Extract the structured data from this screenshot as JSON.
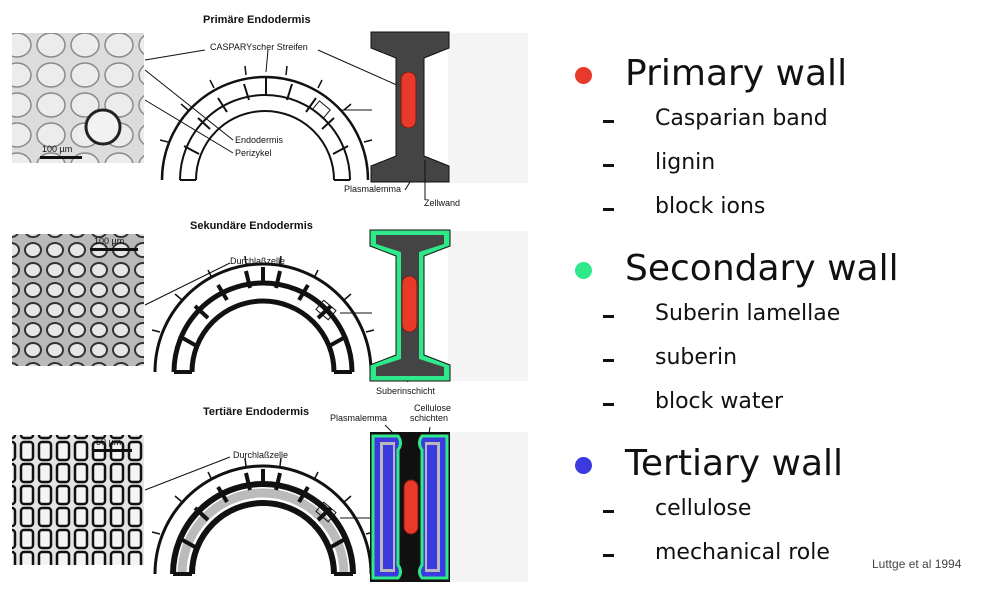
{
  "figure": {
    "primary": {
      "title": "Primäre Endodermis",
      "labels": {
        "band": "CASPARYscher Streifen",
        "endodermis": "Endodermis",
        "pericycle": "Perizykel",
        "plasmalemma": "Plasmalemma",
        "cell_wall": "Zellwand"
      },
      "scale": "100 µm"
    },
    "secondary": {
      "title": "Sekundäre Endodermis",
      "labels": {
        "passage_cell": "Durchlaßzelle",
        "suberin_layer": "Suberinschicht"
      },
      "scale": "100 µm"
    },
    "tertiary": {
      "title": "Tertiäre Endodermis",
      "labels": {
        "plasmalemma": "Plasmalemma",
        "cellulose_1": "Cellulose",
        "cellulose_2": "schichten",
        "passage_cell": "Durchlaßzelle"
      },
      "scale": "50 µm"
    }
  },
  "legend": [
    {
      "heading": "Primary wall",
      "color": "#e8392a",
      "items": [
        "Casparian band",
        "lignin",
        "block ions"
      ]
    },
    {
      "heading": "Secondary wall",
      "color": "#2ee889",
      "items": [
        "Suberin lamellae",
        "suberin",
        "block water"
      ]
    },
    {
      "heading": "Tertiary wall",
      "color": "#3a3ae0",
      "items": [
        "cellulose",
        "mechanical role"
      ]
    }
  ],
  "credit": "Luttge et al 1994"
}
